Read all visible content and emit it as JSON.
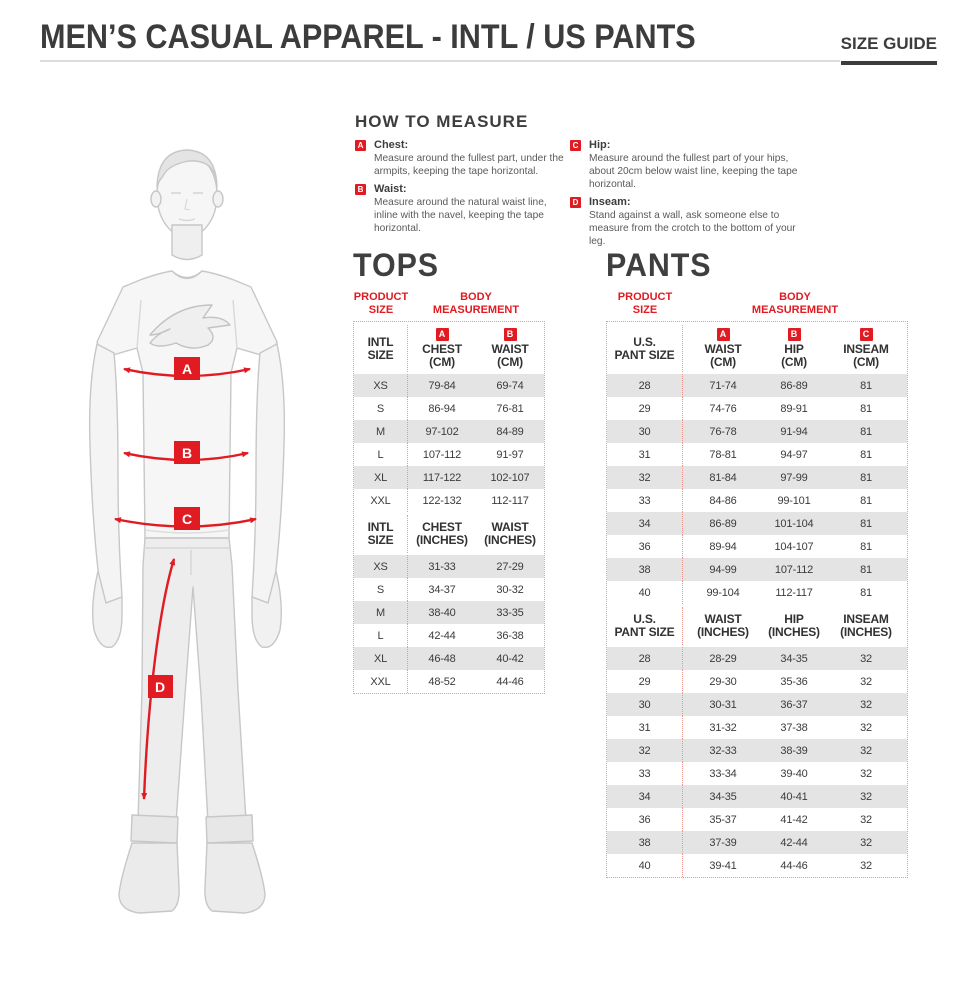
{
  "header": {
    "title": "MEN’S CASUAL APPAREL - INTL / US PANTS",
    "size_guide_label": "SIZE GUIDE"
  },
  "how_to_measure": {
    "heading": "HOW TO MEASURE",
    "items": [
      {
        "badge": "A",
        "label": "Chest:",
        "text": "Measure around the fullest part, under the armpits, keeping the tape horizontal."
      },
      {
        "badge": "B",
        "label": "Waist:",
        "text": "Measure around the natural waist line, inline with the navel, keeping the tape horizontal."
      },
      {
        "badge": "C",
        "label": "Hip:",
        "text": "Measure around the fullest part of your hips, about 20cm below waist line, keeping the tape horizontal."
      },
      {
        "badge": "D",
        "label": "Inseam:",
        "text": "Stand against a wall, ask someone else to measure from the crotch to the bottom of your leg."
      }
    ]
  },
  "figure": {
    "badges": [
      "A",
      "B",
      "C",
      "D"
    ]
  },
  "accent_colors": {
    "red": "#e01b22",
    "dotted_border": "#ef9691",
    "row_shade": "#e4e4e5",
    "ink": "#3c3c3c"
  },
  "tables": [
    {
      "id": "tops",
      "title": "TOPS",
      "product_size_label": [
        "PRODUCT",
        "SIZE"
      ],
      "body_measurement_label": [
        "BODY",
        "MEASUREMENT"
      ],
      "sections": [
        {
          "size_header": [
            "INTL",
            "SIZE"
          ],
          "badges": [
            "A",
            "B"
          ],
          "columns": [
            [
              "CHEST",
              "(CM)"
            ],
            [
              "WAIST",
              "(CM)"
            ]
          ],
          "rows": [
            [
              "XS",
              "79-84",
              "69-74"
            ],
            [
              "S",
              "86-94",
              "76-81"
            ],
            [
              "M",
              "97-102",
              "84-89"
            ],
            [
              "L",
              "107-112",
              "91-97"
            ],
            [
              "XL",
              "117-122",
              "102-107"
            ],
            [
              "XXL",
              "122-132",
              "112-117"
            ]
          ]
        },
        {
          "size_header": [
            "INTL",
            "SIZE"
          ],
          "badges": null,
          "columns": [
            [
              "CHEST",
              "(INCHES)"
            ],
            [
              "WAIST",
              "(INCHES)"
            ]
          ],
          "rows": [
            [
              "XS",
              "31-33",
              "27-29"
            ],
            [
              "S",
              "34-37",
              "30-32"
            ],
            [
              "M",
              "38-40",
              "33-35"
            ],
            [
              "L",
              "42-44",
              "36-38"
            ],
            [
              "XL",
              "46-48",
              "40-42"
            ],
            [
              "XXL",
              "48-52",
              "44-46"
            ]
          ]
        }
      ]
    },
    {
      "id": "pants",
      "title": "PANTS",
      "product_size_label": [
        "PRODUCT",
        "SIZE"
      ],
      "body_measurement_label": [
        "BODY",
        "MEASUREMENT"
      ],
      "sections": [
        {
          "size_header": [
            "U.S.",
            "PANT SIZE"
          ],
          "badges": [
            "A",
            "B",
            "C"
          ],
          "columns": [
            [
              "WAIST",
              "(CM)"
            ],
            [
              "HIP",
              "(CM)"
            ],
            [
              "INSEAM",
              "(CM)"
            ]
          ],
          "rows": [
            [
              "28",
              "71-74",
              "86-89",
              "81"
            ],
            [
              "29",
              "74-76",
              "89-91",
              "81"
            ],
            [
              "30",
              "76-78",
              "91-94",
              "81"
            ],
            [
              "31",
              "78-81",
              "94-97",
              "81"
            ],
            [
              "32",
              "81-84",
              "97-99",
              "81"
            ],
            [
              "33",
              "84-86",
              "99-101",
              "81"
            ],
            [
              "34",
              "86-89",
              "101-104",
              "81"
            ],
            [
              "36",
              "89-94",
              "104-107",
              "81"
            ],
            [
              "38",
              "94-99",
              "107-112",
              "81"
            ],
            [
              "40",
              "99-104",
              "112-117",
              "81"
            ]
          ]
        },
        {
          "size_header": [
            "U.S.",
            "PANT SIZE"
          ],
          "badges": null,
          "columns": [
            [
              "WAIST",
              "(INCHES)"
            ],
            [
              "HIP",
              "(INCHES)"
            ],
            [
              "INSEAM",
              "(INCHES)"
            ]
          ],
          "rows": [
            [
              "28",
              "28-29",
              "34-35",
              "32"
            ],
            [
              "29",
              "29-30",
              "35-36",
              "32"
            ],
            [
              "30",
              "30-31",
              "36-37",
              "32"
            ],
            [
              "31",
              "31-32",
              "37-38",
              "32"
            ],
            [
              "32",
              "32-33",
              "38-39",
              "32"
            ],
            [
              "33",
              "33-34",
              "39-40",
              "32"
            ],
            [
              "34",
              "34-35",
              "40-41",
              "32"
            ],
            [
              "36",
              "35-37",
              "41-42",
              "32"
            ],
            [
              "38",
              "37-39",
              "42-44",
              "32"
            ],
            [
              "40",
              "39-41",
              "44-46",
              "32"
            ]
          ]
        }
      ]
    }
  ]
}
